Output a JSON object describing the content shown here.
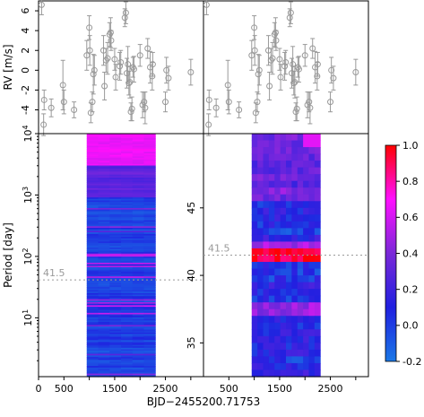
{
  "chart_data": [
    {
      "id": "rv-left",
      "type": "scatter",
      "ylabel": "RV [m/s]",
      "xlim": [
        0,
        3250
      ],
      "ylim": [
        -6.4,
        7.0
      ],
      "yticks": [
        -4,
        -2,
        0,
        2,
        4,
        6
      ],
      "marker": "open-circle",
      "error_bars": true,
      "color": "#999999",
      "points": [
        {
          "x": 60,
          "y": 6.6,
          "err": 1.0
        },
        {
          "x": 100,
          "y": -5.5,
          "err": 1.1
        },
        {
          "x": 110,
          "y": -3.0,
          "err": 1.0
        },
        {
          "x": 250,
          "y": -3.8,
          "err": 0.9
        },
        {
          "x": 480,
          "y": -1.5,
          "err": 2.5
        },
        {
          "x": 500,
          "y": -3.2,
          "err": 1.2
        },
        {
          "x": 700,
          "y": -4.0,
          "err": 0.8
        },
        {
          "x": 950,
          "y": 1.5,
          "err": 1.5
        },
        {
          "x": 1000,
          "y": 4.3,
          "err": 1.2
        },
        {
          "x": 1010,
          "y": 2.0,
          "err": 1.5
        },
        {
          "x": 1030,
          "y": -4.3,
          "err": 1.0
        },
        {
          "x": 1060,
          "y": -3.2,
          "err": 1.0
        },
        {
          "x": 1080,
          "y": -0.4,
          "err": 2.0
        },
        {
          "x": 1100,
          "y": 0.0,
          "err": 1.5
        },
        {
          "x": 1280,
          "y": 2.0,
          "err": 1.5
        },
        {
          "x": 1300,
          "y": -1.6,
          "err": 1.4
        },
        {
          "x": 1330,
          "y": 1.0,
          "err": 1.2
        },
        {
          "x": 1360,
          "y": 1.2,
          "err": 1.6
        },
        {
          "x": 1400,
          "y": 3.6,
          "err": 1.2
        },
        {
          "x": 1420,
          "y": 3.8,
          "err": 1.5
        },
        {
          "x": 1430,
          "y": 3.0,
          "err": 1.0
        },
        {
          "x": 1500,
          "y": 1.1,
          "err": 1.1
        },
        {
          "x": 1520,
          "y": -0.7,
          "err": 1.3
        },
        {
          "x": 1600,
          "y": 0.4,
          "err": 1.4
        },
        {
          "x": 1620,
          "y": 0.8,
          "err": 1.2
        },
        {
          "x": 1700,
          "y": 5.3,
          "err": 0.9
        },
        {
          "x": 1720,
          "y": 5.8,
          "err": 1.1
        },
        {
          "x": 1740,
          "y": -0.3,
          "err": 1.5
        },
        {
          "x": 1760,
          "y": 0.6,
          "err": 1.8
        },
        {
          "x": 1780,
          "y": -1.3,
          "err": 1.2
        },
        {
          "x": 1800,
          "y": -1.2,
          "err": 1.6
        },
        {
          "x": 1820,
          "y": -4.2,
          "err": 0.9
        },
        {
          "x": 1840,
          "y": -3.9,
          "err": 1.2
        },
        {
          "x": 1860,
          "y": 0.3,
          "err": 1.0
        },
        {
          "x": 1880,
          "y": 0.1,
          "err": 1.3
        },
        {
          "x": 2000,
          "y": 1.5,
          "err": 1.1
        },
        {
          "x": 2050,
          "y": -3.5,
          "err": 1.3
        },
        {
          "x": 2080,
          "y": -3.2,
          "err": 1.0
        },
        {
          "x": 2100,
          "y": -3.8,
          "err": 1.6
        },
        {
          "x": 2150,
          "y": 2.2,
          "err": 1.0
        },
        {
          "x": 2200,
          "y": 0.3,
          "err": 1.6
        },
        {
          "x": 2240,
          "y": -0.6,
          "err": 1.4
        },
        {
          "x": 2250,
          "y": 0.6,
          "err": 1.2
        },
        {
          "x": 2500,
          "y": -3.2,
          "err": 1.0
        },
        {
          "x": 2520,
          "y": 0.0,
          "err": 1.3
        },
        {
          "x": 2560,
          "y": -0.8,
          "err": 1.2
        },
        {
          "x": 3000,
          "y": -0.2,
          "err": 1.3
        }
      ]
    },
    {
      "id": "rv-right",
      "type": "scatter",
      "xlim": [
        0,
        3250
      ],
      "ylim": [
        -6.4,
        7.0
      ],
      "marker": "open-circle",
      "error_bars": true,
      "color": "#999999",
      "same_points_as": "rv-left"
    },
    {
      "id": "periodogram-left",
      "type": "heatmap",
      "xlabel": "BJD−2455200.71753",
      "ylabel": "Period [day]",
      "xlim": [
        0,
        3250
      ],
      "xticks": [
        0,
        500,
        1500,
        2500
      ],
      "y_scale": "log",
      "ylim": [
        1.1,
        10000
      ],
      "yticks": [
        {
          "value": 10,
          "label": "10",
          "sup": "1"
        },
        {
          "value": 100,
          "label": "10",
          "sup": "2"
        },
        {
          "value": 1000,
          "label": "10",
          "sup": "3"
        },
        {
          "value": 10000,
          "label": "10",
          "sup": "4"
        }
      ],
      "data_x_range": [
        950,
        2300
      ],
      "reference_line": {
        "value": 41.5,
        "label": "41.5"
      }
    },
    {
      "id": "periodogram-right",
      "type": "heatmap",
      "xlim": [
        0,
        3250
      ],
      "xticks": [
        500,
        1500,
        2500
      ],
      "ylim": [
        32.5,
        50.5
      ],
      "yticks": [
        35,
        40,
        45
      ],
      "data_x_range": [
        950,
        2300
      ],
      "reference_line": {
        "value": 41.5,
        "label": "41.5"
      }
    },
    {
      "id": "colorbar",
      "type": "heatmap",
      "range": [
        -0.2,
        1.0
      ],
      "ticks": [
        {
          "value": 1.0,
          "label": "1.0"
        },
        {
          "value": 0.8,
          "label": "0.8"
        },
        {
          "value": 0.6,
          "label": "0.6"
        },
        {
          "value": 0.4,
          "label": "0.4"
        },
        {
          "value": 0.2,
          "label": "0.2"
        },
        {
          "value": 0.0,
          "label": "0.0"
        },
        {
          "value": -0.2,
          "label": "-0.2"
        }
      ],
      "colors": [
        "#1a78e6",
        "#2020e0",
        "#7a28d8",
        "#ff10ff",
        "#ff0000"
      ]
    }
  ]
}
